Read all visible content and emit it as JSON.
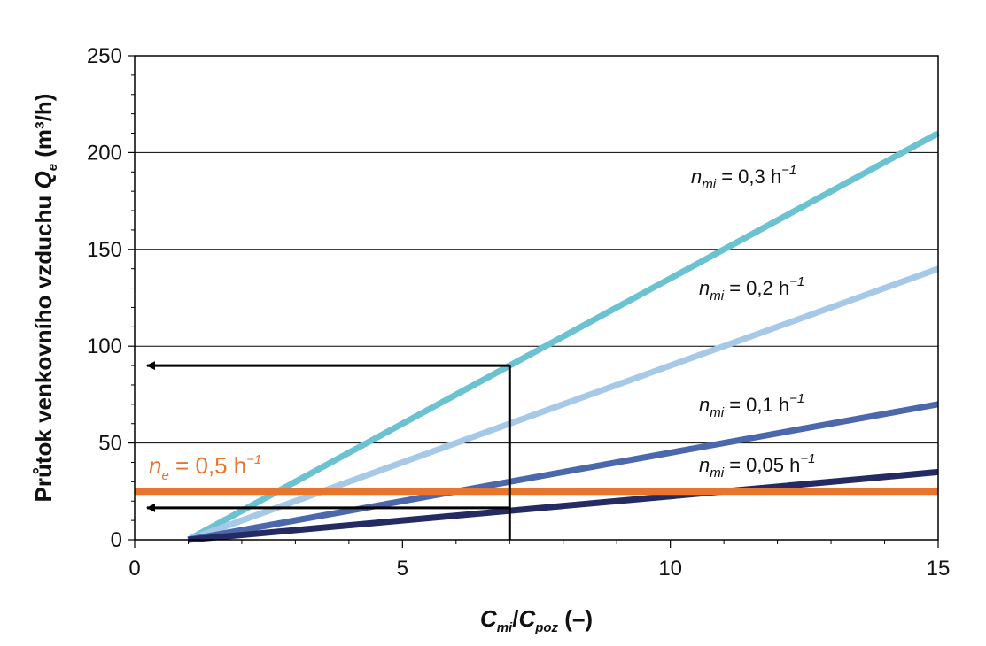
{
  "chart_data": {
    "type": "line",
    "x_axis": {
      "label_parts": {
        "a": "C",
        "a_sub": "mi",
        "sep": "/",
        "b": "C",
        "b_sub": "poz",
        "unit": "(–)"
      },
      "range": [
        0,
        15
      ],
      "major_ticks": [
        0,
        5,
        10,
        15
      ],
      "major_tick_labels": [
        "0",
        "5",
        "10",
        "15"
      ],
      "minor_tick_step": 1
    },
    "y_axis": {
      "label_parts": {
        "text": "Průtok venkovního vzduchu",
        "sym": "Q",
        "sym_sub": "e",
        "unit": "(m³/h)"
      },
      "range": [
        0,
        250
      ],
      "major_ticks": [
        0,
        50,
        100,
        150,
        200,
        250
      ],
      "major_tick_labels": [
        "0",
        "50",
        "100",
        "150",
        "200",
        "250"
      ],
      "minor_tick_step": 10,
      "gridlines": true
    },
    "series": [
      {
        "symbol": "n",
        "sub": "mi",
        "value_text": " = 0,3 h",
        "sup": "−1",
        "color": "#6bc3d1",
        "points": [
          [
            1,
            0
          ],
          [
            15,
            210
          ]
        ]
      },
      {
        "symbol": "n",
        "sub": "mi",
        "value_text": " = 0,2 h",
        "sup": "−1",
        "color": "#a7c9e8",
        "points": [
          [
            1,
            0
          ],
          [
            15,
            140
          ]
        ]
      },
      {
        "symbol": "n",
        "sub": "mi",
        "value_text": " = 0,1 h",
        "sup": "−1",
        "color": "#4b68ad",
        "points": [
          [
            1,
            0
          ],
          [
            15,
            70
          ]
        ]
      },
      {
        "symbol": "n",
        "sub": "mi",
        "value_text": " = 0,05 h",
        "sup": "−1",
        "color": "#242b63",
        "points": [
          [
            1,
            0
          ],
          [
            15,
            35
          ]
        ]
      }
    ],
    "reference_line": {
      "symbol": "n",
      "sub": "e",
      "value_text": " = 0,5 h",
      "sup": "−1",
      "color": "#e8752b",
      "y": 25,
      "x_range": [
        0,
        15
      ]
    },
    "annotations": [
      {
        "kind": "vertical-line",
        "x": 7,
        "y_range": [
          0,
          90
        ]
      },
      {
        "kind": "arrow-left",
        "y": 90,
        "x_from": 7,
        "x_to": 0
      },
      {
        "kind": "arrow-left",
        "y": 16.5,
        "x_from": 7,
        "x_to": 0
      }
    ]
  }
}
